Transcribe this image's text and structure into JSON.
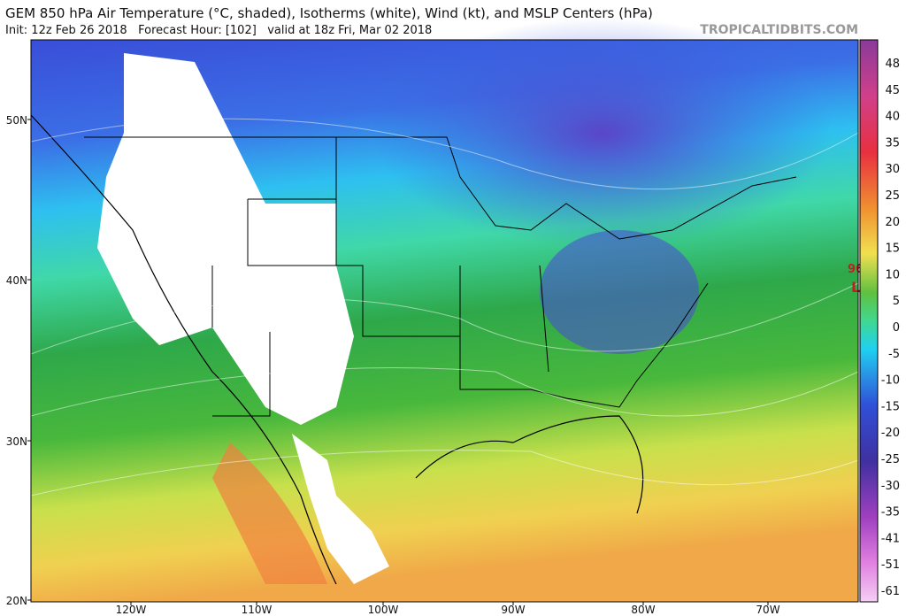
{
  "header": {
    "title": "GEM 850 hPa Air Temperature (°C, shaded), Isotherms (white), Wind (kt), and MSLP Centers (hPa)",
    "subtitle": "Init: 12z Feb 26 2018   Forecast Hour: [102]   valid at 18z Fri, Mar 02 2018",
    "site": "TROPICALTIDBITS.COM"
  },
  "map": {
    "lat_labels": [
      "50N",
      "40N",
      "30N",
      "20N"
    ],
    "lon_labels": [
      "120W",
      "110W",
      "100W",
      "90W",
      "80W",
      "70W"
    ],
    "pressure_center": {
      "value": "96",
      "symbol": "L"
    }
  },
  "colorbar": {
    "labels": [
      48,
      45,
      40,
      35,
      30,
      25,
      20,
      15,
      10,
      5,
      0,
      -5,
      -10,
      -15,
      -20,
      -25,
      -30,
      -35,
      -41,
      -51,
      -61
    ]
  }
}
